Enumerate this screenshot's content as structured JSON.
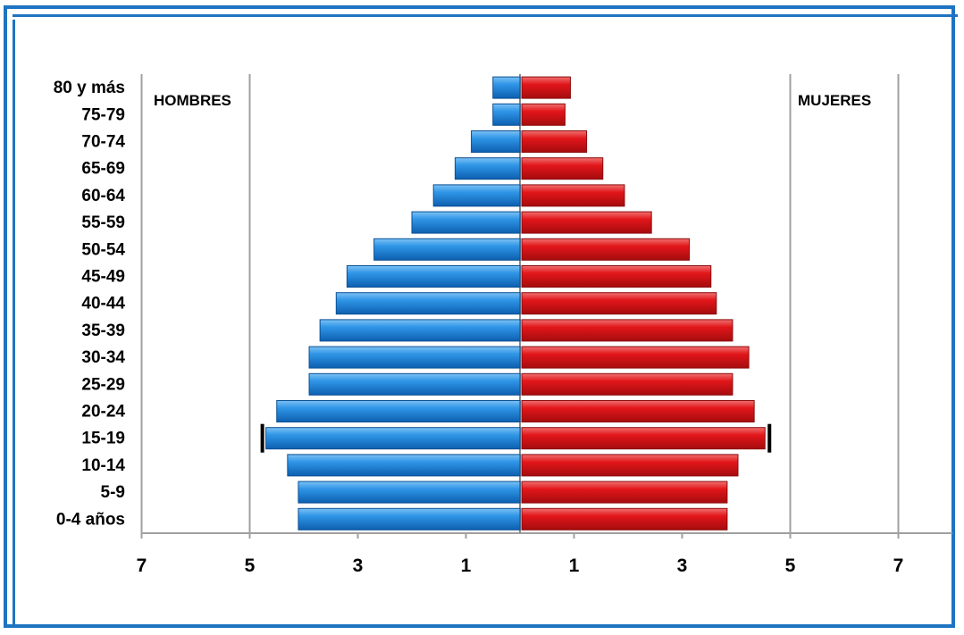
{
  "chart_data": {
    "type": "bar",
    "orientation": "horizontal-population-pyramid",
    "left_label": "HOMBRES",
    "right_label": "MUJERES",
    "categories": [
      "80 y más",
      "75-79",
      "70-74",
      "65-69",
      "60-64",
      "55-59",
      "50-54",
      "45-49",
      "40-44",
      "35-39",
      "30-34",
      "25-29",
      "20-24",
      "15-19",
      "10-14",
      "5-9",
      "0-4 años"
    ],
    "series": [
      {
        "name": "HOMBRES",
        "color": "#2a8be0",
        "values": [
          0.5,
          0.5,
          0.9,
          1.2,
          1.6,
          2.0,
          2.7,
          3.2,
          3.4,
          3.7,
          3.9,
          3.9,
          4.5,
          4.7,
          4.3,
          4.1,
          4.1
        ]
      },
      {
        "name": "MUJERES",
        "color": "#e0191c",
        "values": [
          0.9,
          0.8,
          1.2,
          1.5,
          1.9,
          2.4,
          3.1,
          3.5,
          3.6,
          3.9,
          4.2,
          3.9,
          4.3,
          4.5,
          4.0,
          3.8,
          3.8
        ]
      }
    ],
    "x_tick_labels": [
      "7",
      "5",
      "3",
      "1",
      "1",
      "3",
      "5",
      "7"
    ],
    "xlim": [
      -7,
      7
    ],
    "grid": "vertical at 5 and 7"
  }
}
